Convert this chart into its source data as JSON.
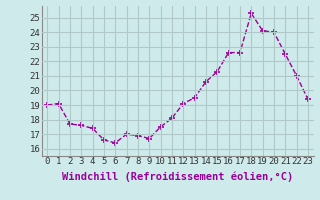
{
  "x": [
    0,
    1,
    2,
    3,
    4,
    5,
    6,
    7,
    8,
    9,
    10,
    11,
    12,
    13,
    14,
    15,
    16,
    17,
    18,
    19,
    20,
    21,
    22,
    23
  ],
  "y": [
    19.0,
    19.1,
    17.7,
    17.6,
    17.4,
    16.6,
    16.4,
    17.0,
    16.9,
    16.7,
    17.5,
    18.1,
    19.1,
    19.5,
    20.6,
    21.3,
    22.6,
    22.6,
    25.3,
    24.1,
    24.0,
    22.5,
    21.0,
    19.4
  ],
  "line_color": "#990099",
  "marker": "+",
  "marker_size": 4,
  "marker_linewidth": 1.2,
  "background_color": "#ceeaea",
  "grid_color": "#b0c8c8",
  "xlabel": "Windchill (Refroidissement éolien,°C)",
  "xlabel_fontsize": 7.5,
  "xlim": [
    -0.5,
    23.5
  ],
  "ylim": [
    15.5,
    25.8
  ],
  "yticks": [
    16,
    17,
    18,
    19,
    20,
    21,
    22,
    23,
    24,
    25
  ],
  "xticks": [
    0,
    1,
    2,
    3,
    4,
    5,
    6,
    7,
    8,
    9,
    10,
    11,
    12,
    13,
    14,
    15,
    16,
    17,
    18,
    19,
    20,
    21,
    22,
    23
  ],
  "tick_fontsize": 6.5,
  "line_width": 1.0,
  "linestyle": "--"
}
